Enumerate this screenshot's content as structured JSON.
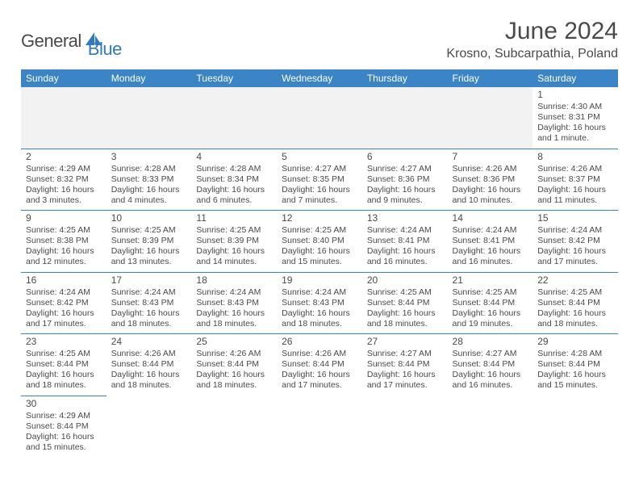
{
  "brand": {
    "name1": "General",
    "name2": "Blue",
    "logo_color": "#2f7ac0",
    "text_color": "#4a4a4a"
  },
  "title": "June 2024",
  "location": "Krosno, Subcarpathia, Poland",
  "colors": {
    "header_bg": "#3b85c6",
    "header_fg": "#ffffff",
    "border": "#3b85c6",
    "blank_bg": "#f2f2f2",
    "body_text": "#4a4a4a"
  },
  "day_headers": [
    "Sunday",
    "Monday",
    "Tuesday",
    "Wednesday",
    "Thursday",
    "Friday",
    "Saturday"
  ],
  "weeks": [
    [
      null,
      null,
      null,
      null,
      null,
      null,
      {
        "d": "1",
        "sr": "4:30 AM",
        "ss": "8:31 PM",
        "dl": "16 hours and 1 minute."
      }
    ],
    [
      {
        "d": "2",
        "sr": "4:29 AM",
        "ss": "8:32 PM",
        "dl": "16 hours and 3 minutes."
      },
      {
        "d": "3",
        "sr": "4:28 AM",
        "ss": "8:33 PM",
        "dl": "16 hours and 4 minutes."
      },
      {
        "d": "4",
        "sr": "4:28 AM",
        "ss": "8:34 PM",
        "dl": "16 hours and 6 minutes."
      },
      {
        "d": "5",
        "sr": "4:27 AM",
        "ss": "8:35 PM",
        "dl": "16 hours and 7 minutes."
      },
      {
        "d": "6",
        "sr": "4:27 AM",
        "ss": "8:36 PM",
        "dl": "16 hours and 9 minutes."
      },
      {
        "d": "7",
        "sr": "4:26 AM",
        "ss": "8:36 PM",
        "dl": "16 hours and 10 minutes."
      },
      {
        "d": "8",
        "sr": "4:26 AM",
        "ss": "8:37 PM",
        "dl": "16 hours and 11 minutes."
      }
    ],
    [
      {
        "d": "9",
        "sr": "4:25 AM",
        "ss": "8:38 PM",
        "dl": "16 hours and 12 minutes."
      },
      {
        "d": "10",
        "sr": "4:25 AM",
        "ss": "8:39 PM",
        "dl": "16 hours and 13 minutes."
      },
      {
        "d": "11",
        "sr": "4:25 AM",
        "ss": "8:39 PM",
        "dl": "16 hours and 14 minutes."
      },
      {
        "d": "12",
        "sr": "4:25 AM",
        "ss": "8:40 PM",
        "dl": "16 hours and 15 minutes."
      },
      {
        "d": "13",
        "sr": "4:24 AM",
        "ss": "8:41 PM",
        "dl": "16 hours and 16 minutes."
      },
      {
        "d": "14",
        "sr": "4:24 AM",
        "ss": "8:41 PM",
        "dl": "16 hours and 16 minutes."
      },
      {
        "d": "15",
        "sr": "4:24 AM",
        "ss": "8:42 PM",
        "dl": "16 hours and 17 minutes."
      }
    ],
    [
      {
        "d": "16",
        "sr": "4:24 AM",
        "ss": "8:42 PM",
        "dl": "16 hours and 17 minutes."
      },
      {
        "d": "17",
        "sr": "4:24 AM",
        "ss": "8:43 PM",
        "dl": "16 hours and 18 minutes."
      },
      {
        "d": "18",
        "sr": "4:24 AM",
        "ss": "8:43 PM",
        "dl": "16 hours and 18 minutes."
      },
      {
        "d": "19",
        "sr": "4:24 AM",
        "ss": "8:43 PM",
        "dl": "16 hours and 18 minutes."
      },
      {
        "d": "20",
        "sr": "4:25 AM",
        "ss": "8:44 PM",
        "dl": "16 hours and 18 minutes."
      },
      {
        "d": "21",
        "sr": "4:25 AM",
        "ss": "8:44 PM",
        "dl": "16 hours and 19 minutes."
      },
      {
        "d": "22",
        "sr": "4:25 AM",
        "ss": "8:44 PM",
        "dl": "16 hours and 18 minutes."
      }
    ],
    [
      {
        "d": "23",
        "sr": "4:25 AM",
        "ss": "8:44 PM",
        "dl": "16 hours and 18 minutes."
      },
      {
        "d": "24",
        "sr": "4:26 AM",
        "ss": "8:44 PM",
        "dl": "16 hours and 18 minutes."
      },
      {
        "d": "25",
        "sr": "4:26 AM",
        "ss": "8:44 PM",
        "dl": "16 hours and 18 minutes."
      },
      {
        "d": "26",
        "sr": "4:26 AM",
        "ss": "8:44 PM",
        "dl": "16 hours and 17 minutes."
      },
      {
        "d": "27",
        "sr": "4:27 AM",
        "ss": "8:44 PM",
        "dl": "16 hours and 17 minutes."
      },
      {
        "d": "28",
        "sr": "4:27 AM",
        "ss": "8:44 PM",
        "dl": "16 hours and 16 minutes."
      },
      {
        "d": "29",
        "sr": "4:28 AM",
        "ss": "8:44 PM",
        "dl": "16 hours and 15 minutes."
      }
    ],
    [
      {
        "d": "30",
        "sr": "4:29 AM",
        "ss": "8:44 PM",
        "dl": "16 hours and 15 minutes."
      },
      null,
      null,
      null,
      null,
      null,
      null
    ]
  ],
  "labels": {
    "sunrise": "Sunrise:",
    "sunset": "Sunset:",
    "daylight": "Daylight:"
  }
}
